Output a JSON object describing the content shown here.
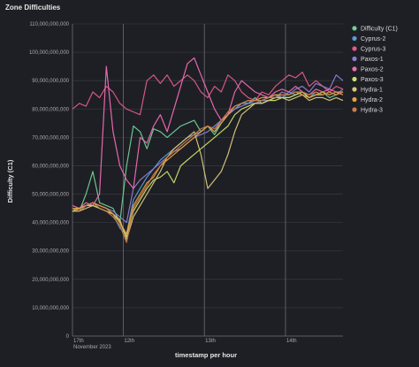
{
  "panel": {
    "title": "Zone Difficulties"
  },
  "chart_data": {
    "type": "line",
    "title": "Zone Difficulties",
    "xlabel": "timestamp per hour",
    "ylabel": "Difficulty (C1)",
    "ylim": [
      0,
      110000000000
    ],
    "y_ticks": [
      {
        "value": 0,
        "label": "0"
      },
      {
        "value": 10000000000,
        "label": "10,000,000,000"
      },
      {
        "value": 20000000000,
        "label": "20,000,000,000"
      },
      {
        "value": 30000000000,
        "label": "30,000,000,000"
      },
      {
        "value": 40000000000,
        "label": "40,000,000,000"
      },
      {
        "value": 50000000000,
        "label": "50,000,000,000"
      },
      {
        "value": 60000000000,
        "label": "60,000,000,000"
      },
      {
        "value": 70000000000,
        "label": "70,000,000,000"
      },
      {
        "value": 80000000000,
        "label": "80,000,000,000"
      },
      {
        "value": 90000000000,
        "label": "90,000,000,000"
      },
      {
        "value": 100000000000,
        "label": "100,000,000,000"
      },
      {
        "value": 110000000000,
        "label": "110,000,000,000"
      }
    ],
    "xlim": [
      0,
      80
    ],
    "x_ticks": [
      {
        "value": 0,
        "label": "17th",
        "sublabel": "November 2023"
      },
      {
        "value": 15,
        "label": "12th",
        "sublabel": ""
      },
      {
        "value": 39,
        "label": "13th",
        "sublabel": ""
      },
      {
        "value": 63,
        "label": "14th",
        "sublabel": ""
      }
    ],
    "grid": true,
    "legend_position": "right",
    "series": [
      {
        "name": "Difficulty (C1)",
        "color": "#6fcf97",
        "x": [
          0,
          2,
          4,
          6,
          8,
          10,
          12,
          14,
          16,
          18,
          20,
          22,
          24,
          26,
          28,
          30,
          32,
          34,
          36,
          38,
          40,
          42,
          44,
          46,
          48,
          50,
          52,
          54,
          56,
          58,
          60,
          62,
          64,
          66,
          68,
          70,
          72,
          74,
          76,
          78,
          80
        ],
        "y": [
          45,
          44,
          50,
          58,
          47,
          46,
          45,
          40,
          60,
          74,
          72,
          66,
          73,
          72,
          70,
          72,
          74,
          75,
          76,
          72,
          74,
          71,
          75,
          78,
          80,
          82,
          82,
          84,
          82,
          83,
          84,
          84,
          84,
          85,
          86,
          84,
          85,
          86,
          84,
          85,
          86
        ]
      },
      {
        "name": "Cyprus-2",
        "color": "#5b9bd5",
        "x": [
          0,
          2,
          4,
          6,
          8,
          10,
          12,
          14,
          16,
          18,
          20,
          22,
          24,
          26,
          28,
          30,
          32,
          34,
          36,
          38,
          40,
          42,
          44,
          46,
          48,
          50,
          52,
          54,
          56,
          58,
          60,
          62,
          64,
          66,
          68,
          70,
          72,
          74,
          76,
          78,
          80
        ],
        "y": [
          44,
          44,
          46,
          47,
          45,
          44,
          43,
          38,
          36,
          48,
          52,
          56,
          59,
          62,
          64,
          66,
          68,
          70,
          71,
          72,
          74,
          72,
          76,
          78,
          80,
          82,
          82,
          83,
          83,
          84,
          85,
          84,
          86,
          85,
          86,
          84,
          86,
          85,
          86,
          85,
          87
        ]
      },
      {
        "name": "Cyprus-3",
        "color": "#e05a8a",
        "x": [
          0,
          2,
          4,
          6,
          8,
          10,
          12,
          14,
          16,
          18,
          20,
          22,
          24,
          26,
          28,
          30,
          32,
          34,
          36,
          38,
          40,
          42,
          44,
          46,
          48,
          50,
          52,
          54,
          56,
          58,
          60,
          62,
          64,
          66,
          68,
          70,
          72,
          74,
          76,
          78,
          80
        ],
        "y": [
          80,
          82,
          81,
          86,
          84,
          88,
          86,
          82,
          80,
          79,
          78,
          90,
          92,
          89,
          92,
          88,
          90,
          92,
          90,
          86,
          84,
          88,
          86,
          92,
          90,
          86,
          84,
          83,
          86,
          85,
          88,
          90,
          92,
          91,
          93,
          88,
          90,
          88,
          86,
          88,
          87
        ]
      },
      {
        "name": "Paxos-1",
        "color": "#8e7dd4",
        "x": [
          0,
          2,
          4,
          6,
          8,
          10,
          12,
          14,
          16,
          18,
          20,
          22,
          24,
          26,
          28,
          30,
          32,
          34,
          36,
          38,
          40,
          42,
          44,
          46,
          48,
          50,
          52,
          54,
          56,
          58,
          60,
          62,
          64,
          66,
          68,
          70,
          72,
          74,
          76,
          78,
          80
        ],
        "y": [
          45,
          45,
          46,
          47,
          46,
          45,
          44,
          42,
          40,
          52,
          55,
          57,
          59,
          61,
          63,
          65,
          66,
          68,
          70,
          71,
          72,
          74,
          76,
          78,
          80,
          81,
          82,
          82,
          83,
          83,
          84,
          86,
          85,
          87,
          88,
          86,
          89,
          88,
          87,
          92,
          90
        ]
      },
      {
        "name": "Paxos-2",
        "color": "#f06bb6",
        "x": [
          0,
          2,
          4,
          6,
          8,
          10,
          12,
          14,
          16,
          18,
          20,
          22,
          24,
          26,
          28,
          30,
          32,
          34,
          36,
          38,
          40,
          42,
          44,
          46,
          48,
          50,
          52,
          54,
          56,
          58,
          60,
          62,
          64,
          66,
          68,
          70,
          72,
          74,
          76,
          78,
          80
        ],
        "y": [
          46,
          45,
          47,
          46,
          50,
          95,
          72,
          60,
          55,
          52,
          70,
          68,
          74,
          78,
          72,
          80,
          88,
          96,
          98,
          92,
          86,
          80,
          76,
          78,
          86,
          90,
          88,
          86,
          85,
          84,
          86,
          87,
          86,
          88,
          86,
          85,
          87,
          86,
          87,
          86,
          86
        ]
      },
      {
        "name": "Paxos-3",
        "color": "#c8e06c",
        "x": [
          0,
          2,
          4,
          6,
          8,
          10,
          12,
          14,
          16,
          18,
          20,
          22,
          24,
          26,
          28,
          30,
          32,
          34,
          36,
          38,
          40,
          42,
          44,
          46,
          48,
          50,
          52,
          54,
          56,
          58,
          60,
          62,
          64,
          66,
          68,
          70,
          72,
          74,
          76,
          78,
          80
        ],
        "y": [
          44,
          45,
          46,
          46,
          45,
          44,
          43,
          40,
          35,
          44,
          48,
          52,
          55,
          56,
          58,
          54,
          60,
          62,
          64,
          66,
          68,
          70,
          72,
          74,
          78,
          80,
          81,
          82,
          82,
          83,
          83,
          84,
          84,
          85,
          86,
          84,
          85,
          85,
          86,
          85,
          86
        ]
      },
      {
        "name": "Hydra-1",
        "color": "#d9c77a",
        "x": [
          0,
          2,
          4,
          6,
          8,
          10,
          12,
          14,
          16,
          18,
          20,
          22,
          24,
          26,
          28,
          30,
          32,
          34,
          36,
          38,
          40,
          42,
          44,
          46,
          48,
          50,
          52,
          54,
          56,
          58,
          60,
          62,
          64,
          66,
          68,
          70,
          72,
          74,
          76,
          78,
          80
        ],
        "y": [
          44,
          44,
          45,
          46,
          45,
          44,
          43,
          41,
          34,
          42,
          46,
          50,
          54,
          58,
          63,
          66,
          68,
          70,
          72,
          64,
          52,
          55,
          58,
          64,
          72,
          78,
          80,
          82,
          82,
          83,
          84,
          84,
          83,
          84,
          85,
          83,
          84,
          84,
          83,
          84,
          83
        ]
      },
      {
        "name": "Hydra-2",
        "color": "#e8a23a",
        "x": [
          0,
          2,
          4,
          6,
          8,
          10,
          12,
          14,
          16,
          18,
          20,
          22,
          24,
          26,
          28,
          30,
          32,
          34,
          36,
          38,
          40,
          42,
          44,
          46,
          48,
          50,
          52,
          54,
          56,
          58,
          60,
          62,
          64,
          66,
          68,
          70,
          72,
          74,
          76,
          78,
          80
        ],
        "y": [
          45,
          45,
          46,
          47,
          46,
          45,
          43,
          40,
          36,
          46,
          50,
          54,
          56,
          60,
          62,
          64,
          66,
          68,
          70,
          72,
          74,
          72,
          75,
          78,
          81,
          82,
          83,
          83,
          84,
          84,
          85,
          85,
          85,
          86,
          85,
          84,
          85,
          86,
          85,
          86,
          85
        ]
      },
      {
        "name": "Hydra-3",
        "color": "#c97b4e",
        "x": [
          0,
          2,
          4,
          6,
          8,
          10,
          12,
          14,
          16,
          18,
          20,
          22,
          24,
          26,
          28,
          30,
          32,
          34,
          36,
          38,
          40,
          42,
          44,
          46,
          48,
          50,
          52,
          54,
          56,
          58,
          60,
          62,
          64,
          66,
          68,
          70,
          72,
          74,
          76,
          78,
          80
        ],
        "y": [
          45,
          44,
          46,
          47,
          45,
          44,
          42,
          39,
          33,
          45,
          49,
          53,
          57,
          60,
          63,
          65,
          67,
          69,
          71,
          73,
          74,
          73,
          76,
          79,
          81,
          82,
          83,
          83,
          83,
          84,
          84,
          85,
          85,
          86,
          86,
          85,
          86,
          85,
          86,
          85,
          86
        ]
      }
    ]
  }
}
